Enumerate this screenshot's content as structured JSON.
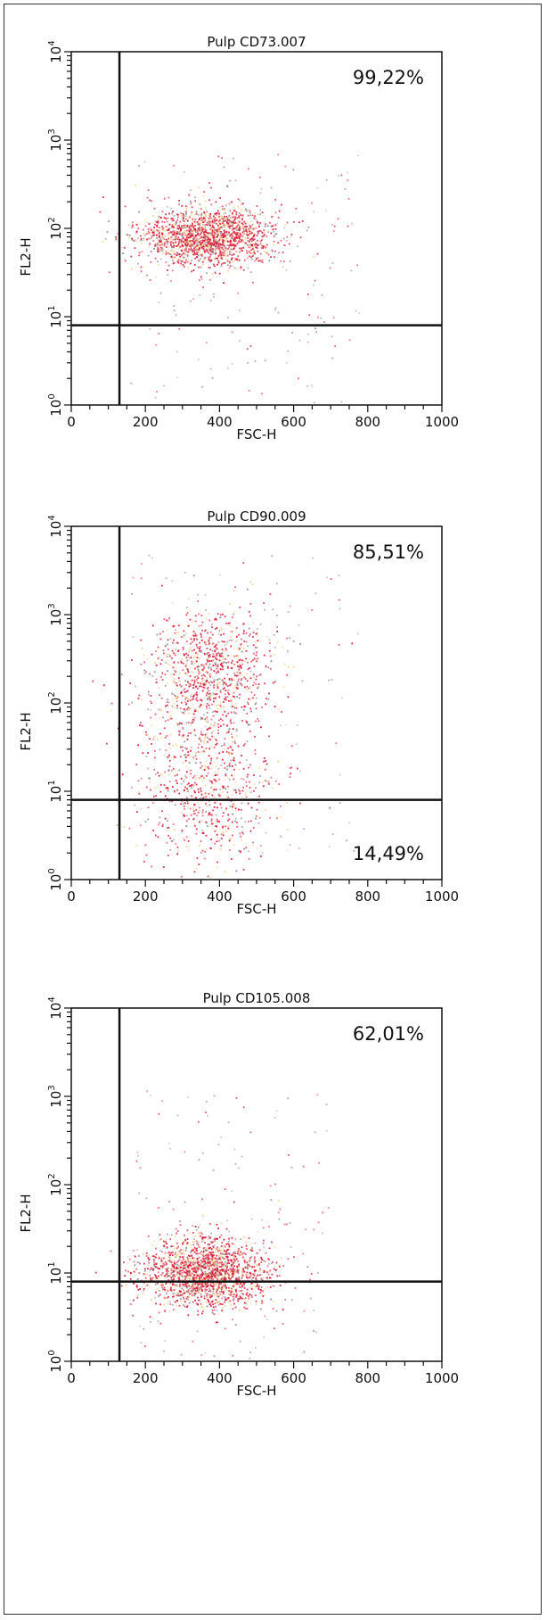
{
  "colors": {
    "dot_main": "#d81b3c",
    "dot_pale": "#f6d58f",
    "dot_grey": "#8a8a8a",
    "axis": "#111111",
    "gate": "#111111"
  },
  "chart_data": [
    {
      "type": "scatter",
      "title": "Pulp CD73.007",
      "xlabel": "FSC-H",
      "ylabel": "FL2-H",
      "xlim": [
        0,
        1000
      ],
      "ylim_log10": [
        0,
        4
      ],
      "x_tick_labels": [
        "0",
        "200",
        "400",
        "600",
        "800",
        "1000"
      ],
      "y_tick_labels": [
        "10^0",
        "10^1",
        "10^2",
        "10^3",
        "10^4"
      ],
      "gate": {
        "x": 130,
        "y": 8
      },
      "quadrant_labels": [
        {
          "text": "99,22%",
          "quadrant": "upper-right"
        }
      ],
      "density_clusters": [
        {
          "cx": 370,
          "cy": 80,
          "sx": 90,
          "sy_log": 0.17,
          "n": 1700
        }
      ],
      "sparse_region": {
        "xmin": 160,
        "xmax": 780,
        "ymin": 1,
        "ymax": 700,
        "n": 160
      }
    },
    {
      "type": "scatter",
      "title": "Pulp CD90.009",
      "xlabel": "FSC-H",
      "ylabel": "FL2-H",
      "xlim": [
        0,
        1000
      ],
      "ylim_log10": [
        0,
        4
      ],
      "x_tick_labels": [
        "0",
        "200",
        "400",
        "600",
        "800",
        "1000"
      ],
      "y_tick_labels": [
        "10^0",
        "10^1",
        "10^2",
        "10^3",
        "10^4"
      ],
      "gate": {
        "x": 130,
        "y": 8
      },
      "quadrant_labels": [
        {
          "text": "85,51%",
          "quadrant": "upper-right"
        },
        {
          "text": "14,49%",
          "quadrant": "lower-right"
        }
      ],
      "density_clusters": [
        {
          "cx": 370,
          "cy": 220,
          "sx": 85,
          "sy_log": 0.35,
          "n": 900
        },
        {
          "cx": 360,
          "cy": 12,
          "sx": 90,
          "sy_log": 0.45,
          "n": 700
        }
      ],
      "sparse_region": {
        "xmin": 160,
        "xmax": 780,
        "ymin": 1.5,
        "ymax": 5000,
        "n": 140
      }
    },
    {
      "type": "scatter",
      "title": "Pulp CD105.008",
      "xlabel": "FSC-H",
      "ylabel": "FL2-H",
      "xlim": [
        0,
        1000
      ],
      "ylim_log10": [
        0,
        4
      ],
      "x_tick_labels": [
        "0",
        "200",
        "400",
        "600",
        "800",
        "1000"
      ],
      "y_tick_labels": [
        "10^0",
        "10^1",
        "10^2",
        "10^3",
        "10^4"
      ],
      "gate": {
        "x": 130,
        "y": 8
      },
      "quadrant_labels": [
        {
          "text": "62,01%",
          "quadrant": "upper-right"
        }
      ],
      "density_clusters": [
        {
          "cx": 360,
          "cy": 10,
          "sx": 85,
          "sy_log": 0.2,
          "n": 1800
        }
      ],
      "sparse_region": {
        "xmin": 160,
        "xmax": 700,
        "ymin": 1,
        "ymax": 1200,
        "n": 140
      }
    }
  ]
}
